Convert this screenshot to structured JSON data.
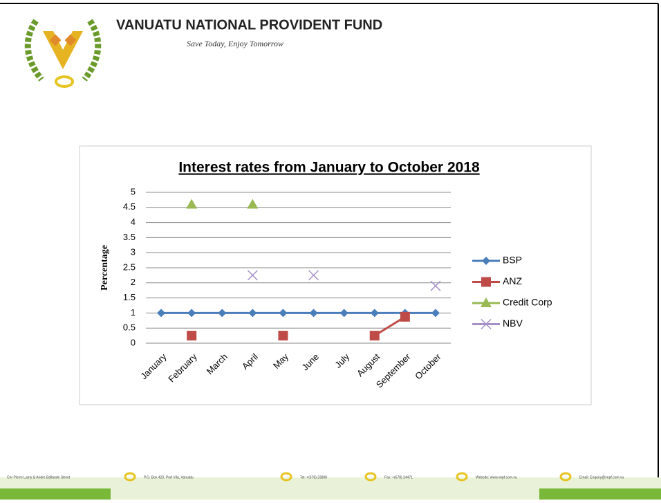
{
  "header": {
    "title": "VANUATU NATIONAL PROVIDENT FUND",
    "motto": "Save Today, Enjoy Tomorrow"
  },
  "chart_data": {
    "type": "line",
    "title": "Interest rates from January to October 2018",
    "y_label": "Percentage",
    "categories": [
      "January",
      "February",
      "March",
      "April",
      "May",
      "June",
      "July",
      "August",
      "September",
      "October"
    ],
    "series": [
      {
        "name": "BSP",
        "color": "#4a7ebb",
        "marker": "diamond",
        "values": [
          1,
          1,
          1,
          1,
          1,
          1,
          1,
          1,
          1,
          1
        ]
      },
      {
        "name": "ANZ",
        "color": "#be4b48",
        "marker": "square",
        "values": [
          null,
          0.25,
          null,
          null,
          0.25,
          null,
          null,
          0.25,
          0.875,
          null
        ]
      },
      {
        "name": "Credit Corp",
        "color": "#98b954",
        "marker": "triangle",
        "values": [
          null,
          4.6,
          null,
          4.6,
          null,
          null,
          null,
          null,
          null,
          null
        ]
      },
      {
        "name": "NBV",
        "color": "#a48fc8",
        "marker": "x",
        "values": [
          null,
          null,
          null,
          2.25,
          null,
          2.25,
          null,
          null,
          null,
          1.9
        ]
      }
    ],
    "ylim": [
      0,
      5
    ],
    "yticks": [
      0,
      0.5,
      1,
      1.5,
      2,
      2.5,
      3,
      3.5,
      4,
      4.5,
      5
    ],
    "grid": true,
    "legend": "right"
  },
  "footer": {
    "items": [
      "Cnr Pierre Lamy & Andre Ballande Street",
      "P.O. Box 420, Port Vila, Vanuatu",
      "Tel: +(678) 23808",
      "Fax: +(678) 24471",
      "Website: www.vnpf.com.vu",
      "Email: Enquiry@vnpf.com.vu"
    ]
  }
}
